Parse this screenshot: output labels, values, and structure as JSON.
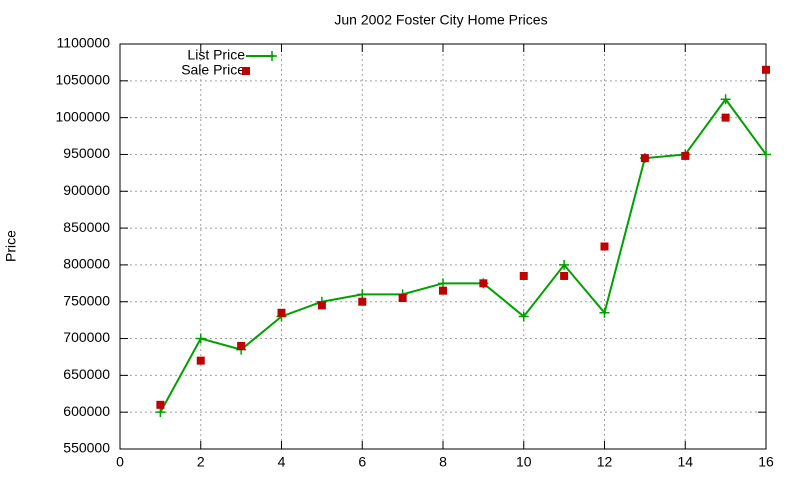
{
  "chart_data": {
    "type": "line",
    "title": "Jun 2002 Foster City Home Prices",
    "ylabel": "Price",
    "x": [
      1,
      2,
      3,
      4,
      5,
      6,
      7,
      8,
      9,
      10,
      11,
      12,
      13,
      14,
      15,
      16
    ],
    "series": [
      {
        "name": "List Price",
        "color": "#00a000",
        "style": "linespoints",
        "values": [
          600000,
          700000,
          685000,
          730000,
          750000,
          760000,
          760000,
          775000,
          775000,
          730000,
          800000,
          735000,
          945000,
          950000,
          1025000,
          950000
        ]
      },
      {
        "name": "Sale Price",
        "color": "#c00000",
        "style": "points",
        "values": [
          610000,
          670000,
          690000,
          735000,
          745000,
          750000,
          755000,
          765000,
          775000,
          785000,
          785000,
          825000,
          945000,
          948000,
          1000000,
          1065000
        ]
      }
    ],
    "xlim": [
      0,
      16
    ],
    "xticks": [
      0,
      2,
      4,
      6,
      8,
      10,
      12,
      14,
      16
    ],
    "ylim": [
      550000,
      1100000
    ],
    "yticks": [
      550000,
      600000,
      650000,
      700000,
      750000,
      800000,
      850000,
      900000,
      950000,
      1000000,
      1050000,
      1100000
    ],
    "grid": true,
    "legend": "top-left"
  }
}
